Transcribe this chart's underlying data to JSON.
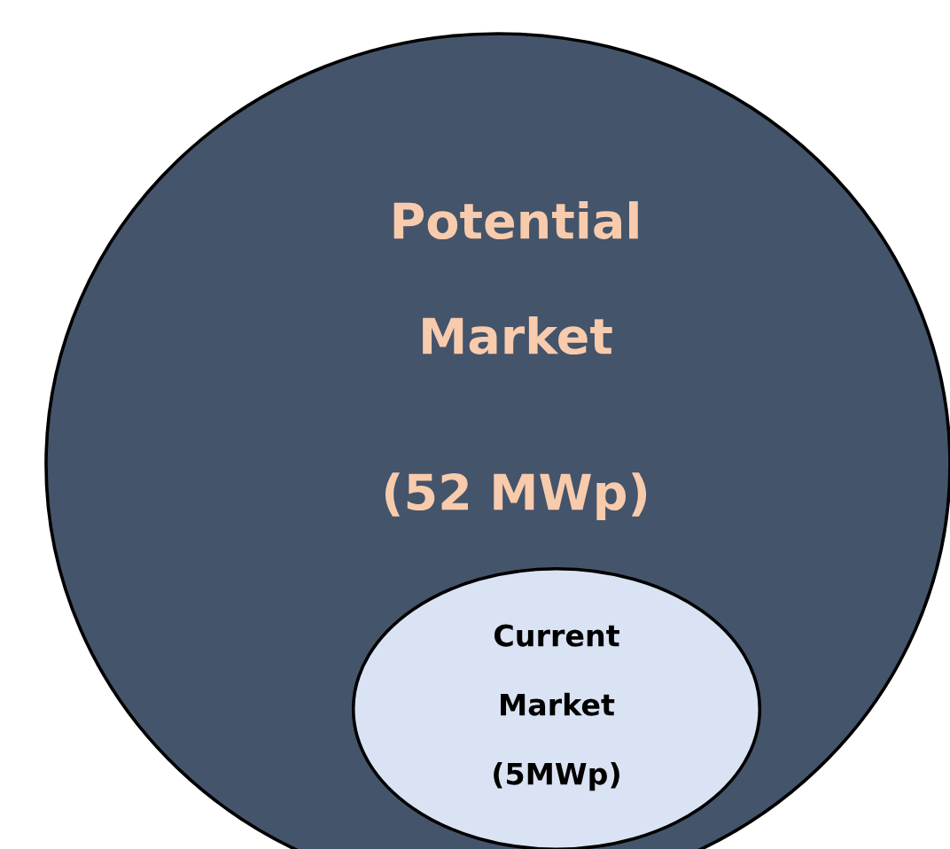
{
  "chart_data": {
    "type": "other",
    "categories": [
      "Potential Market",
      "Current Market"
    ],
    "values": [
      52,
      5
    ],
    "value_labels": [
      "(52 MWp)",
      "(5MWp)"
    ],
    "colors": [
      "#44546a",
      "#dae3f3"
    ]
  }
}
